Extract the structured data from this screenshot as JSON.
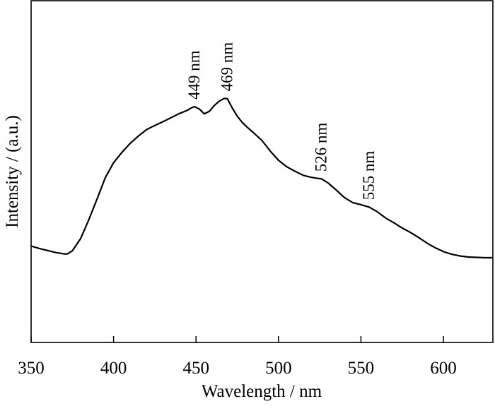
{
  "chart_data": {
    "type": "line",
    "xlabel": "Wavelength / nm",
    "ylabel": "Intensity / (a.u.)",
    "xlim": [
      350,
      630
    ],
    "ylim": [
      0,
      100
    ],
    "x_ticks": [
      350,
      400,
      450,
      500,
      550,
      600
    ],
    "y_ticks_labeled": false,
    "grid": false,
    "series": [
      {
        "x": [
          350,
          355,
          360,
          365,
          370,
          372,
          375,
          380,
          385,
          390,
          395,
          400,
          405,
          410,
          415,
          420,
          425,
          430,
          435,
          440,
          445,
          447,
          449,
          452,
          455,
          458,
          461,
          464,
          467,
          469,
          472,
          475,
          478,
          481,
          485,
          490,
          495,
          500,
          505,
          510,
          515,
          520,
          524,
          526,
          530,
          535,
          540,
          545,
          550,
          555,
          560,
          565,
          570,
          575,
          580,
          585,
          590,
          595,
          600,
          605,
          610,
          615,
          620,
          625,
          630
        ],
        "y": [
          28.2,
          27.5,
          26.9,
          26.3,
          25.9,
          25.9,
          26.8,
          30.4,
          35.9,
          42.0,
          48.2,
          52.6,
          55.6,
          58.2,
          60.4,
          62.3,
          63.5,
          64.6,
          65.8,
          67.0,
          68.0,
          68.6,
          69.0,
          68.3,
          66.9,
          67.6,
          69.3,
          70.6,
          71.4,
          71.3,
          68.6,
          66.2,
          64.4,
          63.0,
          61.3,
          59.1,
          56.0,
          53.3,
          51.4,
          50.1,
          48.9,
          48.3,
          48.0,
          47.9,
          46.7,
          44.6,
          42.4,
          40.9,
          40.3,
          39.6,
          38.2,
          36.4,
          35.0,
          33.5,
          32.2,
          30.7,
          29.1,
          27.7,
          26.6,
          25.8,
          25.3,
          25.0,
          24.9,
          24.8,
          24.8
        ]
      }
    ],
    "annotations": [
      {
        "text": "449 nm",
        "x": 449,
        "y": 69.0
      },
      {
        "text": "469 nm",
        "x": 469,
        "y": 71.4
      },
      {
        "text": "526 nm",
        "x": 526,
        "y": 47.9
      },
      {
        "text": "555 nm",
        "x": 555,
        "y": 39.6
      }
    ]
  }
}
